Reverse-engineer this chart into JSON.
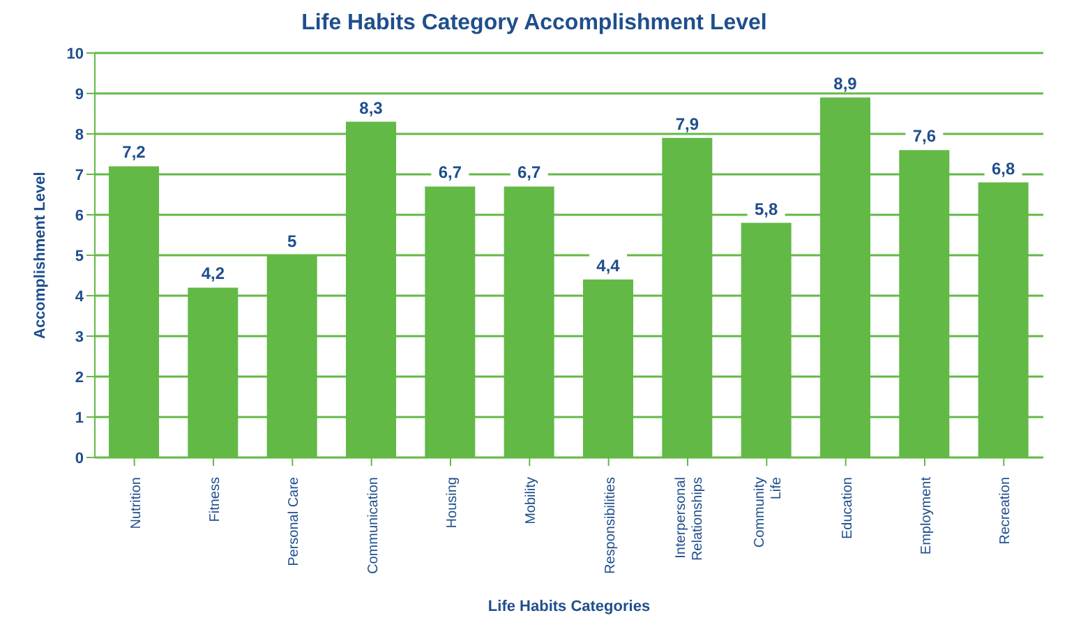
{
  "chart_data": {
    "type": "bar",
    "title": "Life Habits Category Accomplishment Level",
    "xlabel": "Life Habits Categories",
    "ylabel": "Accomplishment Level",
    "categories": [
      "Nutrition",
      "Fitness",
      "Personal Care",
      "Communication",
      "Housing",
      "Mobility",
      "Responsibilities",
      "Interpersonal Relationships",
      "Community Life",
      "Education",
      "Employment",
      "Recreation"
    ],
    "values": [
      7.2,
      4.2,
      5,
      8.3,
      6.7,
      6.7,
      4.4,
      7.9,
      5.8,
      8.9,
      7.6,
      6.8
    ],
    "value_labels": [
      "7,2",
      "4,2",
      "5",
      "8,3",
      "6,7",
      "6,7",
      "4,4",
      "7,9",
      "5,8",
      "8,9",
      "7,6",
      "6,8"
    ],
    "color": "#62b946",
    "ylim": [
      0,
      10
    ],
    "yticks": [
      0,
      1,
      2,
      3,
      4,
      5,
      6,
      7,
      8,
      9,
      10
    ],
    "grid": "y"
  }
}
